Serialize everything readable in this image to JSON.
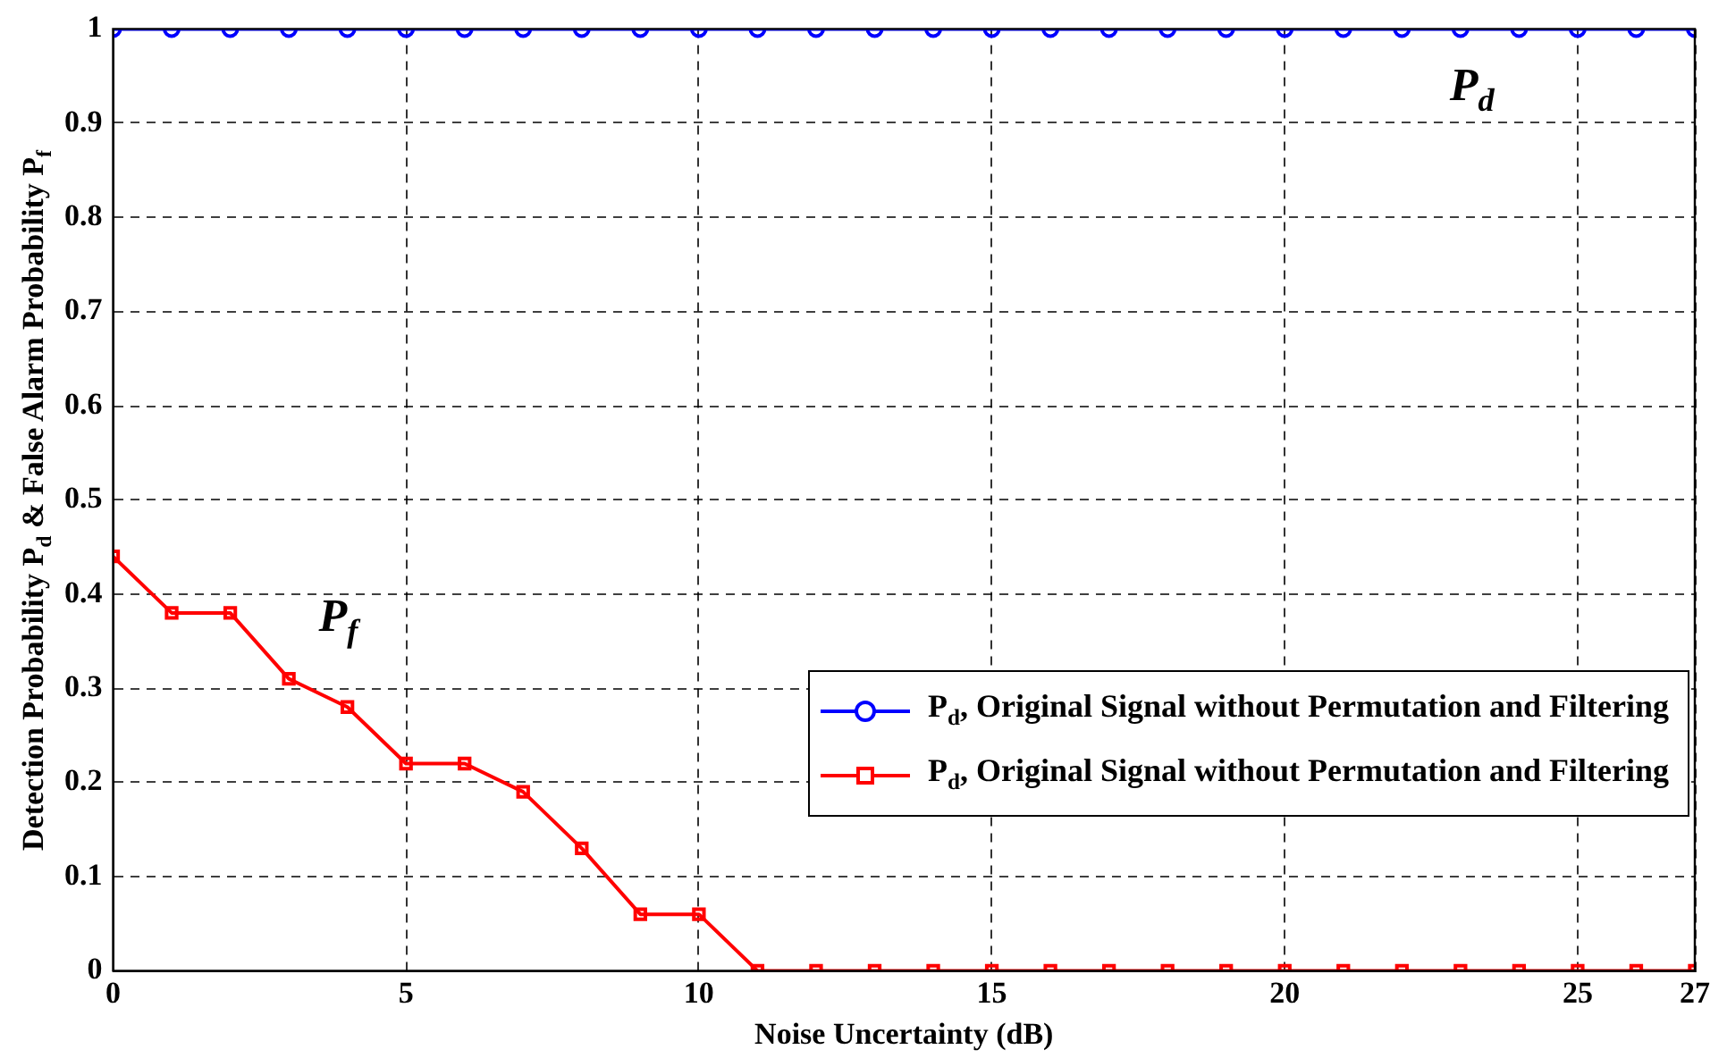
{
  "chart_data": {
    "type": "line",
    "xlabel": "Noise Uncertainty (dB)",
    "ylabel": "Detection Probability P$_{d}$ & False Alarm Probability P$_{f}$",
    "x": [
      0,
      1,
      2,
      3,
      4,
      5,
      6,
      7,
      8,
      9,
      10,
      11,
      12,
      13,
      14,
      15,
      16,
      17,
      18,
      19,
      20,
      21,
      22,
      23,
      24,
      25,
      26,
      27
    ],
    "series": [
      {
        "name": "P$_{d}$, Original Signal without Permutation and Filtering",
        "color": "#0000ff",
        "marker": "circle",
        "values": [
          1,
          1,
          1,
          1,
          1,
          1,
          1,
          1,
          1,
          1,
          1,
          1,
          1,
          1,
          1,
          1,
          1,
          1,
          1,
          1,
          1,
          1,
          1,
          1,
          1,
          1,
          1,
          1
        ]
      },
      {
        "name": "P$_{d}$, Original Signal without Permutation and Filtering",
        "color": "#ff0000",
        "marker": "square",
        "values": [
          0.44,
          0.38,
          0.38,
          0.31,
          0.28,
          0.22,
          0.22,
          0.19,
          0.13,
          0.06,
          0.06,
          0,
          0,
          0,
          0,
          0,
          0,
          0,
          0,
          0,
          0,
          0,
          0,
          0,
          0,
          0,
          0,
          0
        ]
      }
    ],
    "xlim": [
      0,
      27
    ],
    "xticks": [
      0,
      5,
      10,
      15,
      20,
      25,
      27
    ],
    "ylim": [
      0,
      1
    ],
    "yticks": [
      0,
      0.1,
      0.2,
      0.3,
      0.4,
      0.5,
      0.6,
      0.7,
      0.8,
      0.9,
      1
    ],
    "annotations": [
      "P$_{d}$",
      "P$_{f}$"
    ],
    "grid": true,
    "legend": "right",
    "line_style": "solid"
  }
}
